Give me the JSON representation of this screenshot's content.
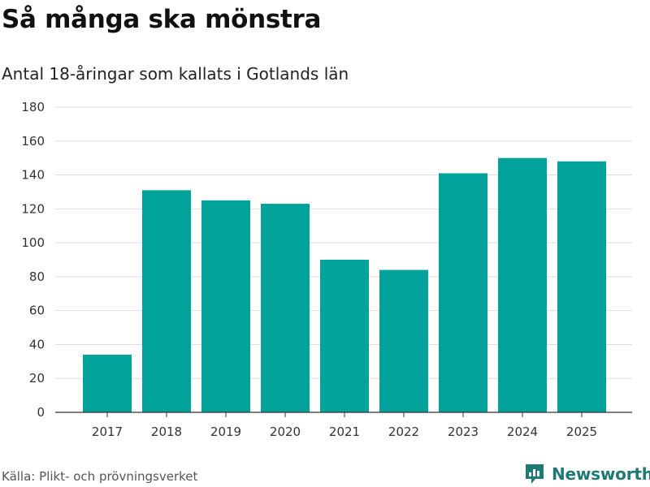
{
  "header": {
    "title": "Så många ska mönstra",
    "subtitle": "Antal 18-åringar som kallats i Gotlands län"
  },
  "chart_data": {
    "type": "bar",
    "title": "Så många ska mönstra",
    "subtitle": "Antal 18-åringar som kallats i Gotlands län",
    "categories": [
      "2017",
      "2018",
      "2019",
      "2020",
      "2021",
      "2022",
      "2023",
      "2024",
      "2025"
    ],
    "values": [
      34,
      131,
      125,
      123,
      90,
      84,
      141,
      150,
      148
    ],
    "xlabel": "",
    "ylabel": "",
    "ylim": [
      0,
      180
    ],
    "yticks": [
      0,
      20,
      40,
      60,
      80,
      100,
      120,
      140,
      160,
      180
    ],
    "grid": true,
    "legend": "none",
    "bar_color": "#00a29a"
  },
  "footer": {
    "source": "Källa: Plikt- och prövningsverket",
    "brand": "Newsworthy",
    "brand_color": "#1f7a74",
    "brand_icon": "newsworthy-logo-icon"
  }
}
